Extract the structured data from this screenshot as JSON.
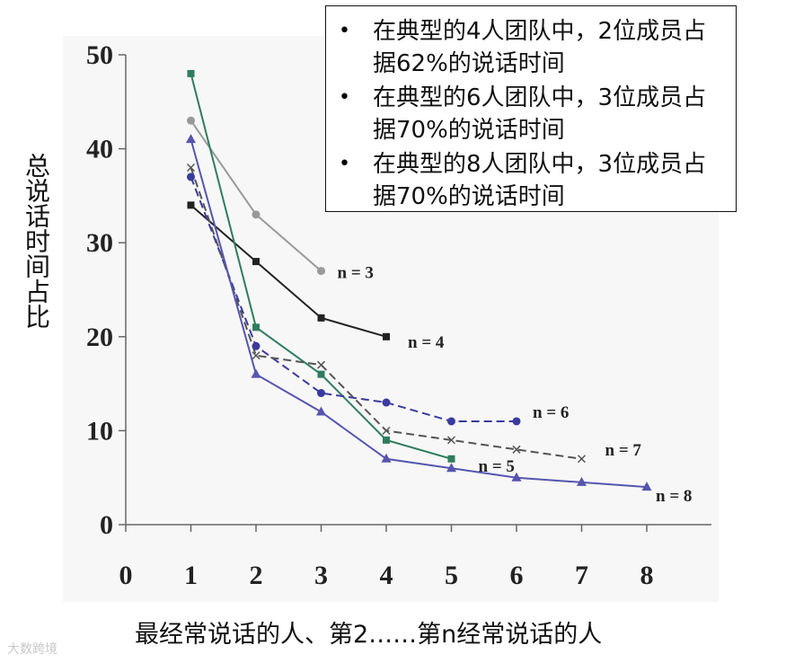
{
  "chart_data": {
    "type": "line",
    "title": "",
    "xlabel": "最经常说话的人、第2……第n经常说话的人",
    "ylabel": "总说话时间占比",
    "xlim": [
      0,
      8
    ],
    "ylim": [
      0,
      50
    ],
    "xticks": [
      0,
      1,
      2,
      3,
      4,
      5,
      6,
      7,
      8
    ],
    "yticks": [
      0,
      10,
      20,
      30,
      40,
      50
    ],
    "grid": false,
    "series": [
      {
        "name": "n = 3",
        "color": "#999999",
        "dash": "solid",
        "marker": "circle",
        "x": [
          1,
          2,
          3
        ],
        "y": [
          43,
          33,
          27
        ]
      },
      {
        "name": "n = 4",
        "color": "#222222",
        "dash": "solid",
        "marker": "square",
        "x": [
          1,
          2,
          3,
          4
        ],
        "y": [
          34,
          28,
          22,
          20
        ]
      },
      {
        "name": "n = 5",
        "color": "#2e7d5e",
        "dash": "solid",
        "marker": "square",
        "x": [
          1,
          2,
          3,
          4,
          5
        ],
        "y": [
          48,
          21,
          16,
          9,
          7
        ]
      },
      {
        "name": "n = 6",
        "color": "#3a3aa0",
        "dash": "dashed",
        "marker": "circle",
        "x": [
          1,
          2,
          3,
          4,
          5,
          6
        ],
        "y": [
          37,
          19,
          14,
          13,
          11,
          11
        ]
      },
      {
        "name": "n = 7",
        "color": "#555555",
        "dash": "dashed",
        "marker": "x",
        "x": [
          1,
          2,
          3,
          4,
          5,
          6,
          7
        ],
        "y": [
          38,
          18,
          17,
          10,
          9,
          8,
          7
        ]
      },
      {
        "name": "n = 8",
        "color": "#5555b0",
        "dash": "solid",
        "marker": "triangle",
        "x": [
          1,
          2,
          3,
          4,
          5,
          6,
          7,
          8
        ],
        "y": [
          41,
          16,
          12,
          7,
          6,
          5,
          4.5,
          4
        ]
      }
    ],
    "legend": {
      "placement": "top-right",
      "items": [
        "在典型的4人团队中，2位成员占据62%的说话时间",
        "在典型的6人团队中，3位成员占据70%的说话时间",
        "在典型的8人团队中，3位成员占据70%的说话时间"
      ]
    }
  },
  "watermark": "大数跨境"
}
